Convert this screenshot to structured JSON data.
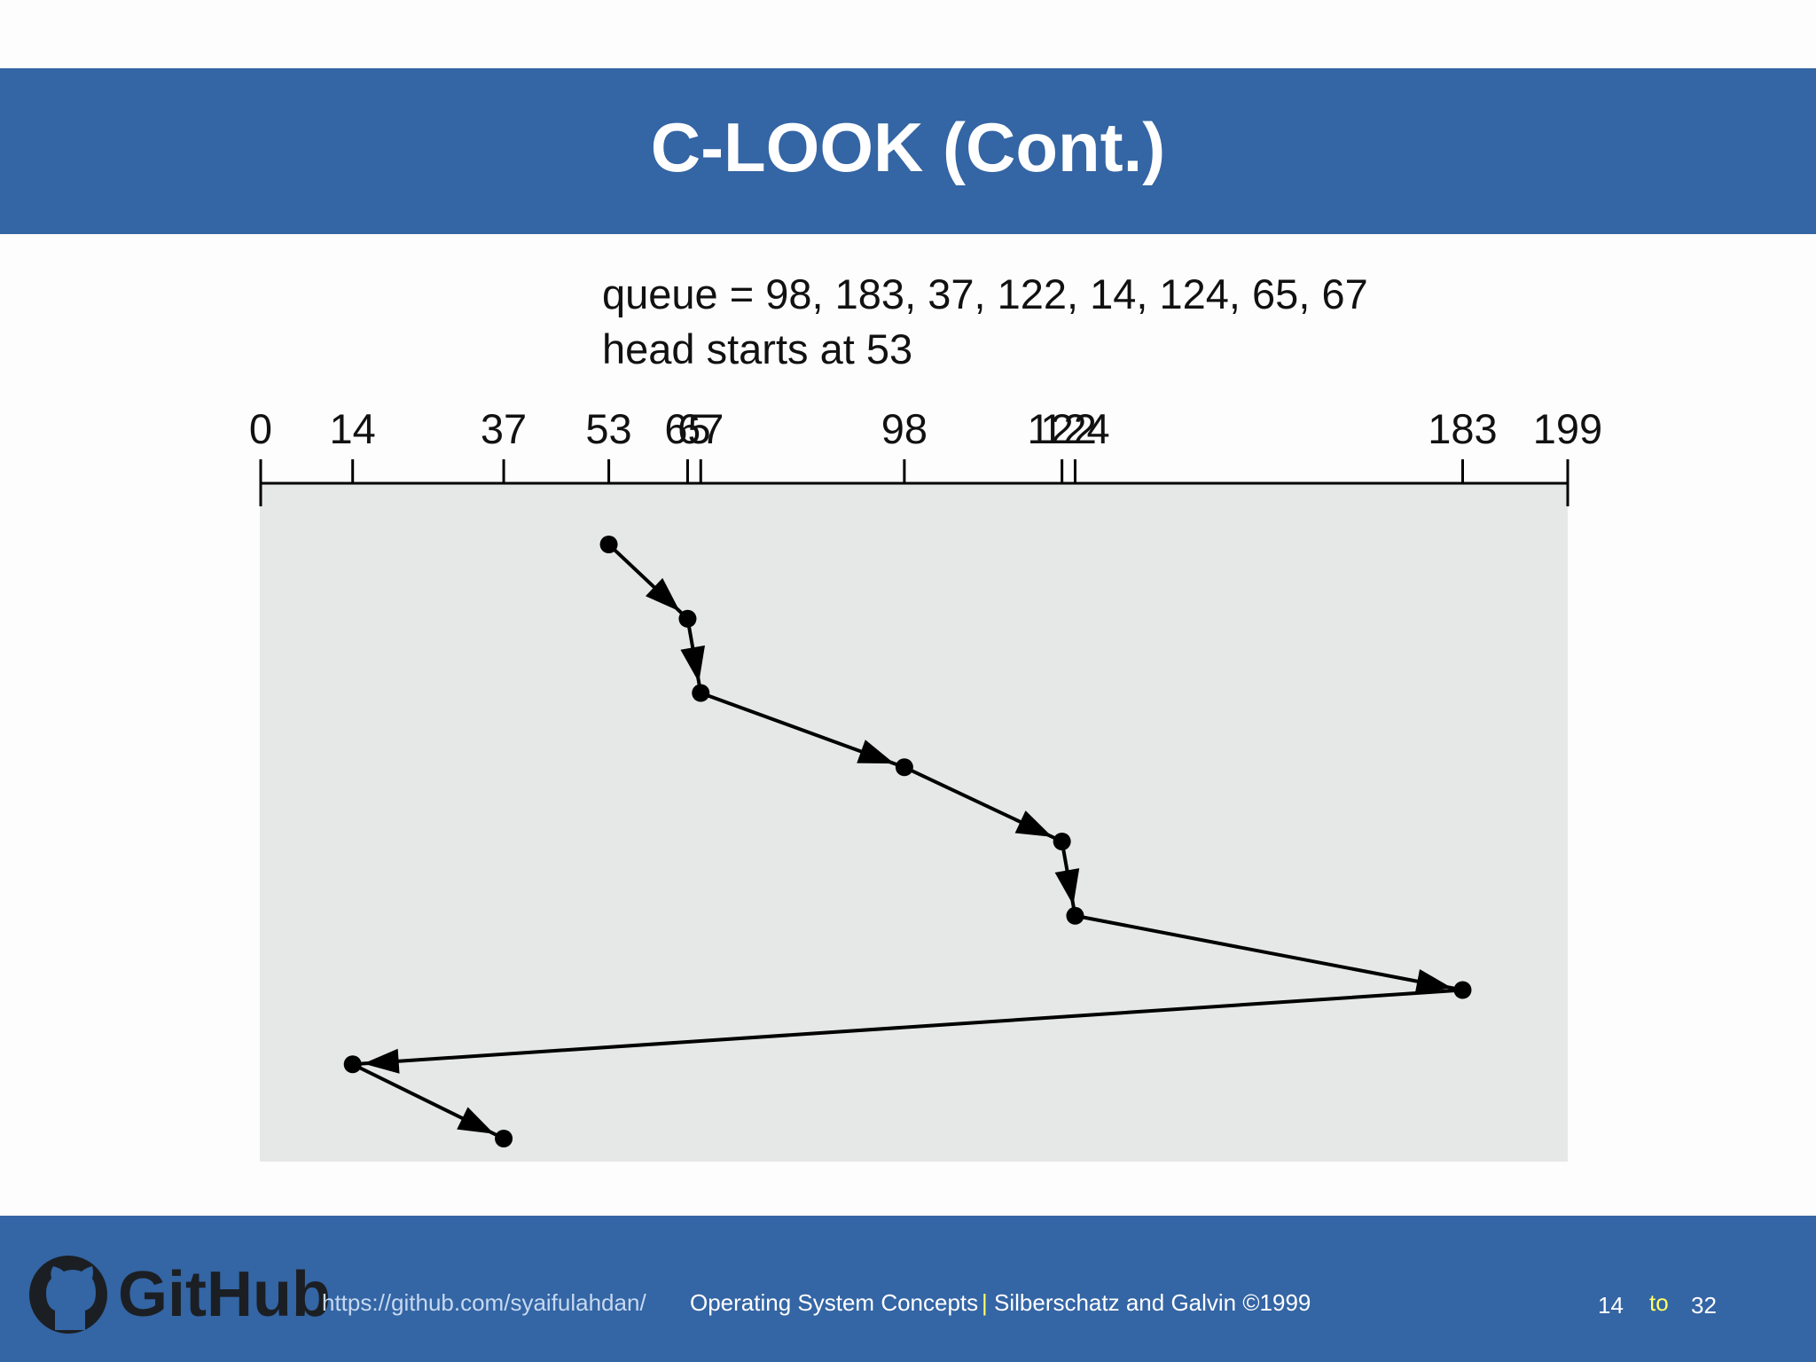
{
  "header": {
    "title": "C-LOOK (Cont.)"
  },
  "chart_data": {
    "type": "line",
    "annotations": [
      "queue = 98, 183, 37, 122, 14, 124, 65, 67",
      "head starts at 53"
    ],
    "values": [
      53,
      65,
      67,
      98,
      122,
      124,
      183,
      14,
      37
    ],
    "color": "#000000",
    "xlim": [
      0,
      199
    ],
    "xticks": [
      0,
      14,
      37,
      53,
      65,
      67,
      98,
      122,
      124,
      183,
      199
    ]
  },
  "footer": {
    "logo_text": "GitHub",
    "url": "https://github.com/syaifulahdan/",
    "course": "Operating System Concepts",
    "separator": "|",
    "authors": "Silberschatz and Galvin ©1999",
    "page": "14",
    "to": "to",
    "total": "32"
  }
}
